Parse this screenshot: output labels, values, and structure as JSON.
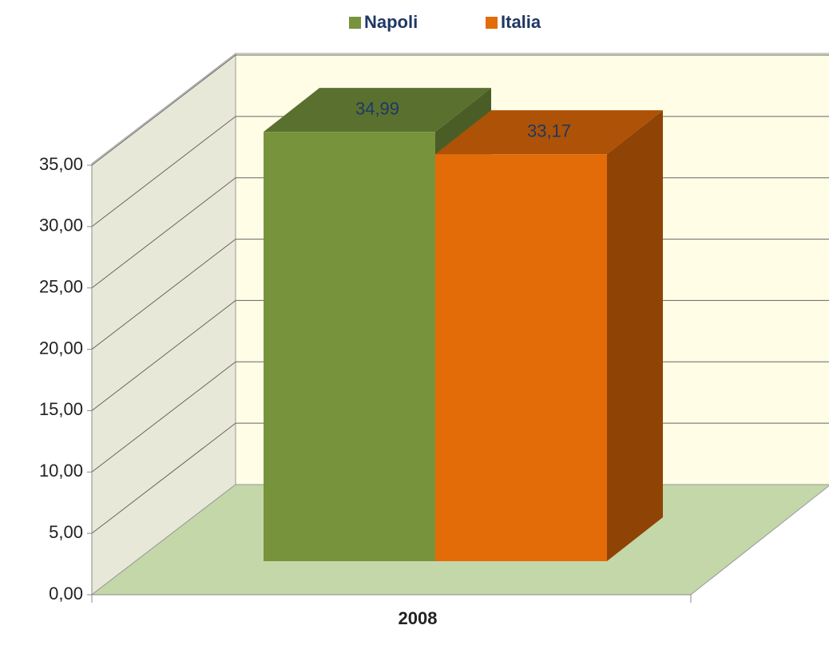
{
  "chart_data": {
    "type": "bar3d",
    "categories": [
      "2008"
    ],
    "series": [
      {
        "name": "Napoli",
        "color": "#77933c",
        "values": [
          34.99
        ],
        "value_labels": [
          "34,99"
        ]
      },
      {
        "name": "Italia",
        "color": "#e36c09",
        "values": [
          33.17
        ],
        "value_labels": [
          "33,17"
        ]
      }
    ],
    "ylim": [
      0,
      35
    ],
    "yticks": [
      {
        "value": 0,
        "label": "0,00"
      },
      {
        "value": 5,
        "label": "5,00"
      },
      {
        "value": 10,
        "label": "10,00"
      },
      {
        "value": 15,
        "label": "15,00"
      },
      {
        "value": 20,
        "label": "20,00"
      },
      {
        "value": 25,
        "label": "25,00"
      },
      {
        "value": 30,
        "label": "30,00"
      },
      {
        "value": 35,
        "label": "35,00"
      }
    ],
    "grid": true,
    "legend": "top"
  }
}
